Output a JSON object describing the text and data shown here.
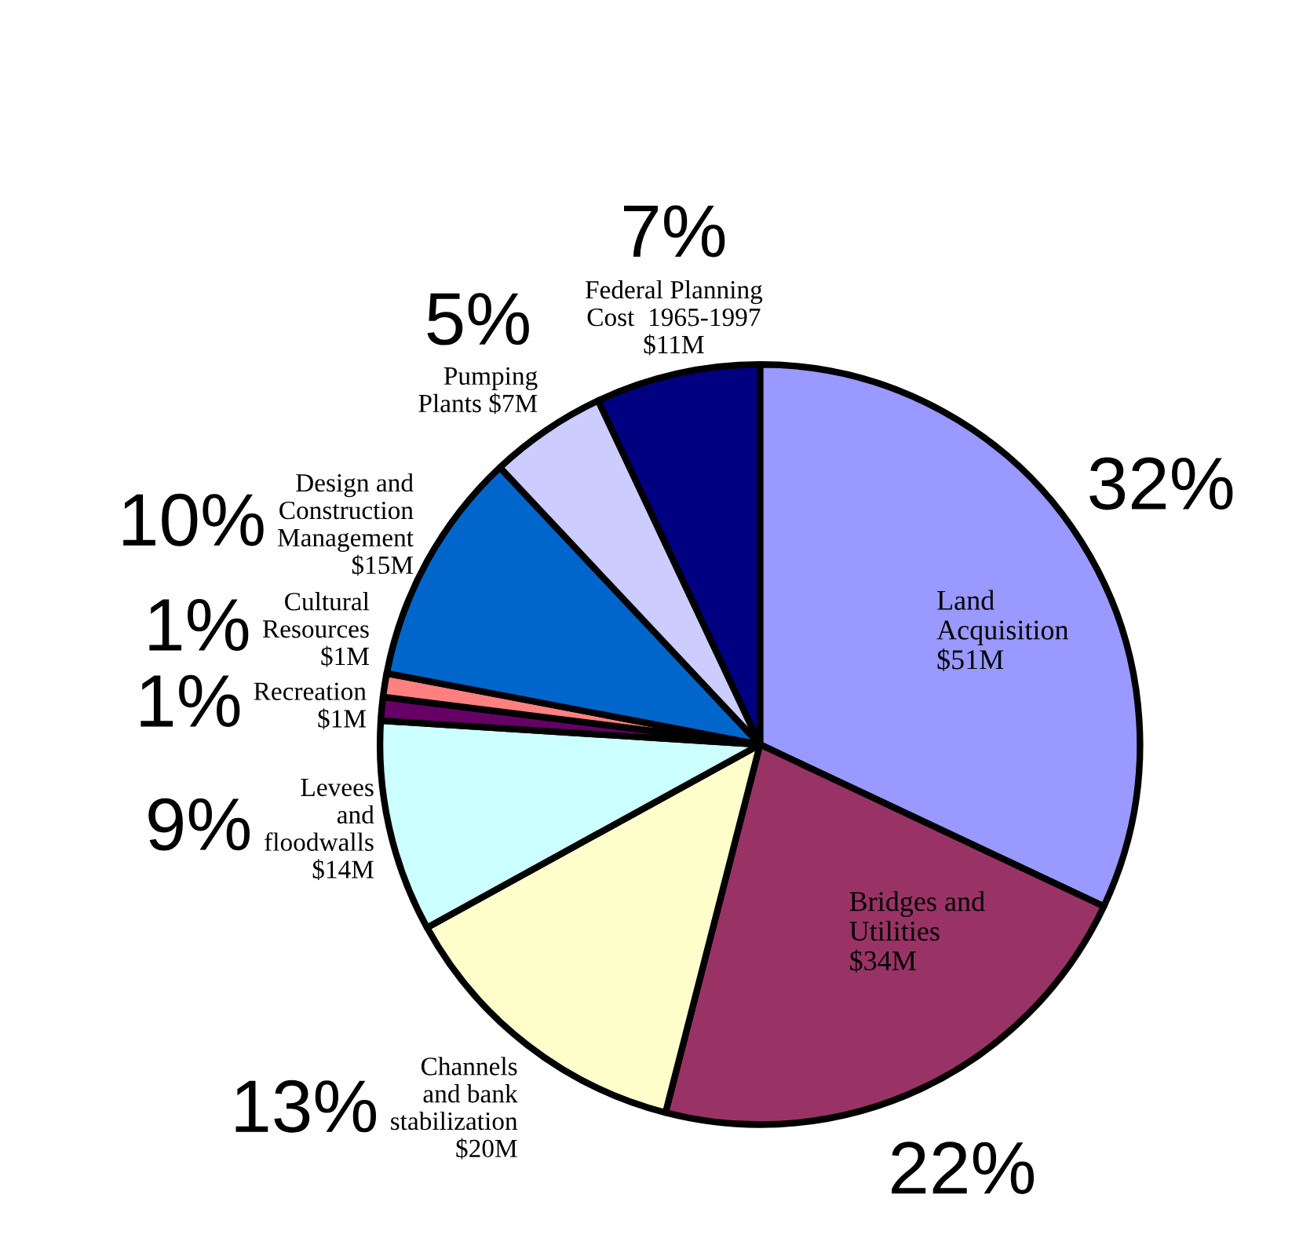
{
  "chart_data": {
    "type": "pie",
    "categories": [
      "Land\nAcquisition\n$51M",
      "Bridges and\nUtilities\n$34M",
      "Channels\nand bank\nstabilization\n$20M",
      "Levees\nand\nfloodwalls\n$14M",
      "Recreation\n$1M",
      "Cultural\nResources\n$1M",
      "Design and\nConstruction\nManagement\n$15M",
      "Pumping\nPlants $7M",
      "Federal Planning\nCost  1965-1997\n$11M"
    ],
    "values": [
      32,
      22,
      13,
      9,
      1,
      1,
      10,
      5,
      7
    ],
    "value_labels": [
      "32%",
      "22%",
      "13%",
      "9%",
      "1%",
      "1%",
      "10%",
      "5%",
      "7%"
    ],
    "colors": [
      "#9999ff",
      "#993366",
      "#ffffcc",
      "#ccffff",
      "#660066",
      "#ff8080",
      "#0066cc",
      "#ccccff",
      "#000080"
    ]
  }
}
